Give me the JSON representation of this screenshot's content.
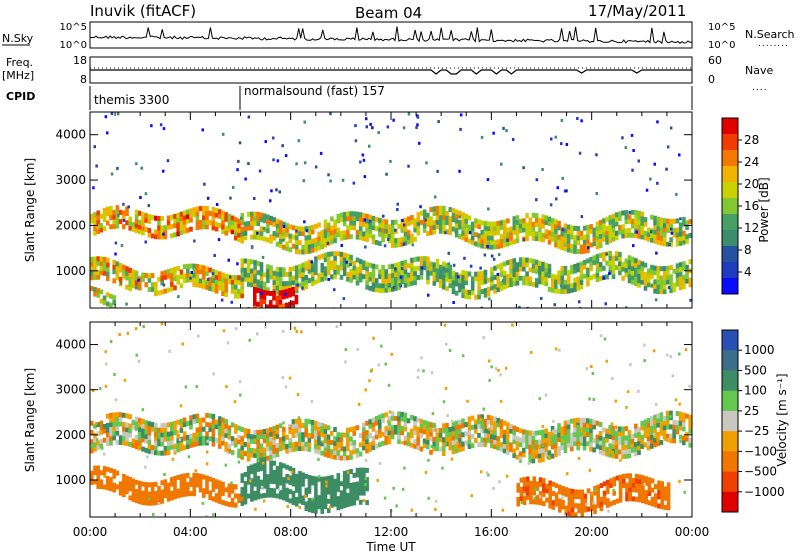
{
  "header": {
    "station": "Inuvik (fitACF)",
    "beam": "Beam 04",
    "date": "17/May/2011"
  },
  "side_labels": {
    "nsky": "N.Sky",
    "nsearch": "N.Search",
    "nsearch_dots": "........",
    "freq": "Freq.",
    "freq_unit": "[MHz]",
    "nave": "Nave",
    "nave_dots": "....",
    "cpid": "CPID"
  },
  "noise_panel": {
    "left_ticks": [
      "10^5",
      "10^0"
    ],
    "right_ticks": [
      "10^5",
      "10^0"
    ]
  },
  "freq_panel": {
    "left_ticks": [
      "18",
      "8"
    ],
    "right_ticks": [
      "60",
      "0"
    ]
  },
  "cpid_segments": [
    {
      "label": "themis 3300",
      "start": 0,
      "end": 6
    },
    {
      "label": "normalsound (fast) 157",
      "start": 6,
      "end": 24
    }
  ],
  "power_colorbar": {
    "title": "Power [dB]",
    "ticks": [
      "28",
      "24",
      "20",
      "16",
      "12",
      "8",
      "4"
    ],
    "colors": [
      "#e00000",
      "#f03c00",
      "#f57800",
      "#f0b400",
      "#c8d200",
      "#82c832",
      "#46a064",
      "#3c8c6e",
      "#2850a0",
      "#1e3cbe",
      "#0a0aff"
    ]
  },
  "velocity_colorbar": {
    "title": "Velocity [m s⁻¹]",
    "ticks": [
      "1000",
      "500",
      "100",
      "25",
      "−25",
      "−100",
      "−500",
      "−1000"
    ],
    "colors": [
      "#2850b4",
      "#3c6e8c",
      "#3c8c64",
      "#64c850",
      "#c8c8c0",
      "#f0a000",
      "#f07800",
      "#f04000",
      "#e00000"
    ]
  },
  "chart_data": [
    {
      "type": "heatmap",
      "title": "Power",
      "xlabel": "Time UT",
      "ylabel": "Slant Range [km]",
      "x_ticks": [
        "00:00",
        "04:00",
        "08:00",
        "12:00",
        "16:00",
        "20:00",
        "00:00"
      ],
      "y_ticks": [
        "1000",
        "2000",
        "3000",
        "4000"
      ],
      "xlim": [
        0,
        24
      ],
      "ylim": [
        180,
        4500
      ],
      "bands": [
        {
          "from_h": 0,
          "to_h": 6,
          "range_km": [
            1850,
            2300
          ],
          "power_db": 22
        },
        {
          "from_h": 0,
          "to_h": 6,
          "range_km": [
            700,
            1150
          ],
          "power_db": 20
        },
        {
          "from_h": 0,
          "to_h": 1,
          "range_km": [
            400,
            650
          ],
          "power_db": 18
        },
        {
          "from_h": 6,
          "to_h": 24,
          "range_km": [
            1700,
            2300
          ],
          "power_db": 18
        },
        {
          "from_h": 6,
          "to_h": 24,
          "range_km": [
            700,
            1300
          ],
          "power_db": 16
        },
        {
          "from_h": 6.5,
          "to_h": 8.2,
          "range_km": [
            200,
            650
          ],
          "power_db": 30
        }
      ]
    },
    {
      "type": "heatmap",
      "title": "Velocity",
      "xlabel": "Time UT",
      "ylabel": "Slant Range [km]",
      "x_ticks": [
        "00:00",
        "04:00",
        "08:00",
        "12:00",
        "16:00",
        "20:00",
        "00:00"
      ],
      "y_ticks": [
        "1000",
        "2000",
        "3000",
        "4000"
      ],
      "xlim": [
        0,
        24
      ],
      "ylim": [
        180,
        4500
      ],
      "bands": [
        {
          "from_h": 0,
          "to_h": 24,
          "range_km": [
            1700,
            2400
          ],
          "velocity": 0
        },
        {
          "from_h": 0,
          "to_h": 6,
          "range_km": [
            700,
            1150
          ],
          "velocity": -300
        },
        {
          "from_h": 6,
          "to_h": 11,
          "range_km": [
            500,
            1300
          ],
          "velocity": 300
        },
        {
          "from_h": 17,
          "to_h": 23,
          "range_km": [
            500,
            1100
          ],
          "velocity": -400
        }
      ]
    }
  ]
}
